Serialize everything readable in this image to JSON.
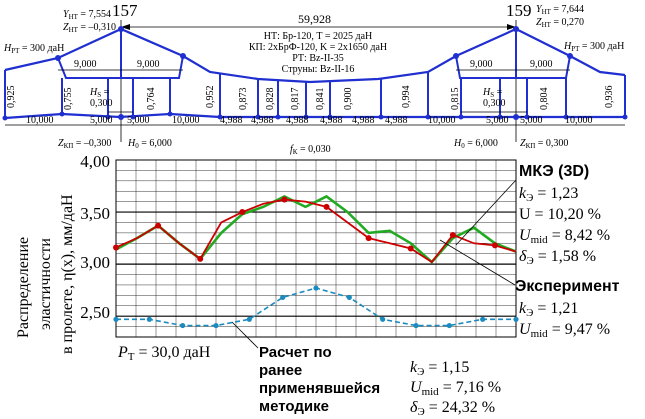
{
  "top": {
    "support_left": "157",
    "support_right": "159",
    "span_length": "59,928",
    "y_ht_left": "Y",
    "y_ht_left_sub": "HT",
    "y_ht_left_val": " = 7,554",
    "z_ht_left": "Z",
    "z_ht_left_sub": "HT",
    "z_ht_left_val": " = –0,310",
    "y_ht_right": "Y",
    "y_ht_right_sub": "HT",
    "y_ht_right_val": " = 7,644",
    "z_ht_right": "Z",
    "z_ht_right_sub": "HT",
    "z_ht_right_val": " = 0,270",
    "h_rt_left": "H",
    "h_rt_left_sub": "PT",
    "h_rt_left_val": " = 300 даН",
    "h_rt_right": "H",
    "h_rt_right_sub": "PT",
    "h_rt_right_val": " = 300 даН",
    "center_lines": [
      "НТ: Бр-120, T = 2025 даН",
      "КП: 2хБрФ-120, K = 2х1650 даН",
      "РТ: Bz-II-35",
      "Струны: Bz-II-16"
    ],
    "dim_9000": "9,000",
    "dim_10000": "10,000",
    "dim_5000": "5,000",
    "dim_4988": "4,988",
    "hs": "H",
    "hs_sub": "S",
    "hs_val": " =",
    "hs_num": "0,300",
    "h0_left": "H",
    "h0_left_sub": "0",
    "h0_left_val": " = 6,000",
    "h0_right": "H",
    "h0_right_sub": "0",
    "h0_right_val": " = 6,000",
    "zkp_left": "Z",
    "zkp_left_sub": "КП",
    "zkp_left_val": " = –0,300",
    "zkp_right": "Z",
    "zkp_right_sub": "КП",
    "zkp_right_val": " = 0,300",
    "fk": "f",
    "fk_sub": "К",
    "fk_val": " = 0,030",
    "droppers": [
      "0,925",
      "0,755",
      "0,764",
      "0,952",
      "0,873",
      "0,828",
      "0,817",
      "0,841",
      "0,900",
      "0,994",
      "0,815",
      "0,804",
      "0,936"
    ]
  },
  "chart_data": {
    "type": "line",
    "ylabel_lines": [
      "Распределение",
      "эластичности",
      "в пролете, η(x), мм/даН"
    ],
    "ylim": [
      2.3,
      4.0
    ],
    "yticks": [
      "4,00",
      "3,50",
      "3,00",
      "2,50"
    ],
    "series": [
      {
        "name": "МКЭ (3D)",
        "color": "#22aa22",
        "values": [
          3.14,
          3.25,
          3.37,
          3.2,
          3.05,
          3.3,
          3.48,
          3.55,
          3.65,
          3.55,
          3.65,
          3.5,
          3.3,
          3.32,
          3.2,
          3.02,
          3.25,
          3.35,
          3.2,
          3.12
        ]
      },
      {
        "name": "Эксперимент",
        "color": "#cc0000",
        "values": [
          3.16,
          3.25,
          3.37,
          3.2,
          3.05,
          3.4,
          3.5,
          3.58,
          3.62,
          3.6,
          3.55,
          3.4,
          3.25,
          3.2,
          3.15,
          3.02,
          3.28,
          3.2,
          3.18,
          3.12
        ]
      },
      {
        "name": "Расчет по ранее применявшейся методике",
        "color": "#1a8abf",
        "values": [
          2.47,
          2.47,
          2.41,
          2.41,
          2.47,
          2.68,
          2.77,
          2.68,
          2.47,
          2.41,
          2.41,
          2.47,
          2.47
        ]
      }
    ],
    "legend": {
      "mke": {
        "title": "МКЭ (3D)",
        "k": "k",
        "k_sub": "Э",
        "k_val": " = 1,23",
        "u": "U = 10,20 %",
        "umid": "U",
        "umid_sub": "mid",
        "umid_val": " = 8,42 %",
        "d": "δ",
        "d_sub": "Э",
        "d_val": " = 1,58 %"
      },
      "exp": {
        "title": "Эксперимент",
        "k": "k",
        "k_sub": "Э",
        "k_val": " = 1,21",
        "umid": "U",
        "umid_sub": "mid",
        "umid_val": " = 9,47 %"
      },
      "old": {
        "title_lines": [
          "Расчет по",
          "ранее",
          "применявшейся",
          "методике"
        ],
        "k": "k",
        "k_sub": "Э",
        "k_val": " = 1,15",
        "umid": "U",
        "umid_sub": "mid",
        "umid_val": " = 7,16 %",
        "d": "δ",
        "d_sub": "Э",
        "d_val": " = 24,32 %"
      }
    },
    "pt": "P",
    "pt_sub": "Т",
    "pt_val": " = 30,0 даН"
  }
}
